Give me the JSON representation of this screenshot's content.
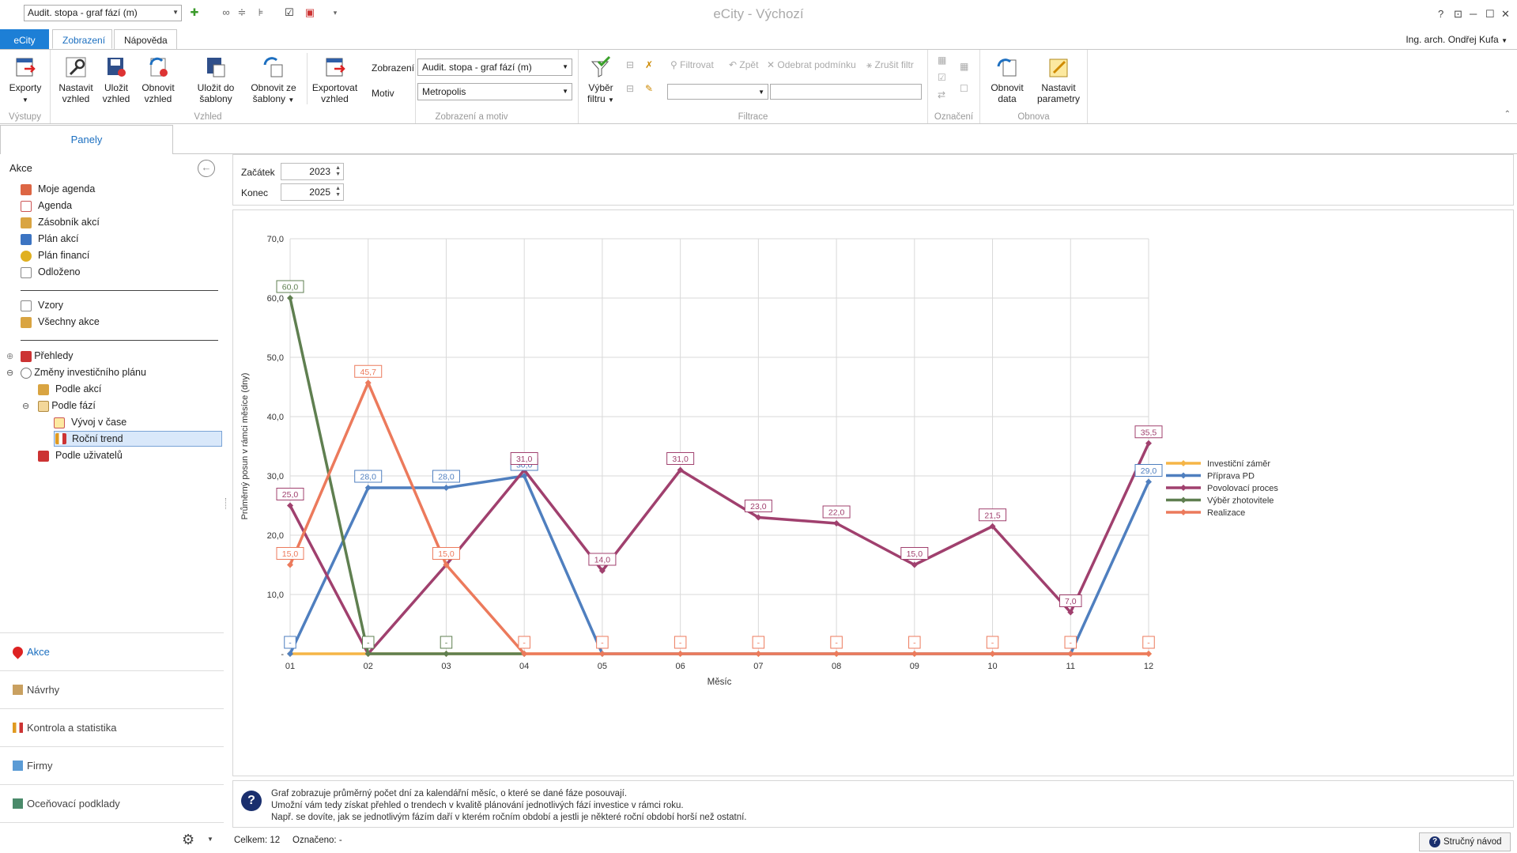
{
  "quick_access": {
    "view_combo": "Audit. stopa - graf fází (m)"
  },
  "app_title": "eCity - Výchozí",
  "window_buttons": [
    "?",
    "⊡",
    "─",
    "☐",
    "✕"
  ],
  "ribbon_tabs": [
    {
      "label": "eCity"
    },
    {
      "label": "Zobrazení"
    },
    {
      "label": "Nápověda"
    }
  ],
  "user": "Ing. arch. Ondřej Kufa",
  "ribbon": {
    "vystupy": {
      "label": "Výstupy",
      "exports": "Exporty"
    },
    "vzhled": {
      "label": "Vzhled",
      "nastavit": "Nastavit vzhled",
      "ulozit": "Uložit vzhled",
      "obnovit": "Obnovit vzhled",
      "ulozit_sablony": "Uložit do šablony",
      "obnovit_sablony": "Obnovit ze šablony",
      "exportovat": "Exportovat vzhled"
    },
    "zobrazeni_motiv": {
      "label": "Zobrazení a motiv",
      "zobrazeni_label": "Zobrazení",
      "zobrazeni_value": "Audit. stopa - graf fází (m)",
      "motiv_label": "Motiv",
      "motiv_value": "Metropolis"
    },
    "filtrace": {
      "label": "Filtrace",
      "vyber_filtru": "Výběr filtru",
      "filtrovat": "Filtrovat",
      "zpet": "Zpět",
      "odebrat": "Odebrat podmínku",
      "zrusit": "Zrušit filtr"
    },
    "oznaceni": {
      "label": "Označení"
    },
    "obnova": {
      "label": "Obnova",
      "obnovit_data": "Obnovit data",
      "nastavit_parametry": "Nastavit parametry"
    }
  },
  "left_panel": {
    "tab": "Panely",
    "section": "Akce",
    "items": [
      {
        "label": "Moje agenda"
      },
      {
        "label": "Agenda"
      },
      {
        "label": "Zásobník akcí"
      },
      {
        "label": "Plán akcí"
      },
      {
        "label": "Plán financí"
      },
      {
        "label": "Odloženo"
      },
      {
        "label": "Vzory"
      },
      {
        "label": "Všechny akce"
      },
      {
        "label": "Přehledy"
      },
      {
        "label": "Změny investičního plánu"
      },
      {
        "label": "Podle akcí"
      },
      {
        "label": "Podle fází"
      },
      {
        "label": "Vývoj v čase"
      },
      {
        "label": "Roční trend"
      },
      {
        "label": "Podle uživatelů"
      }
    ],
    "nav": [
      {
        "label": "Akce"
      },
      {
        "label": "Návrhy"
      },
      {
        "label": "Kontrola a statistika"
      },
      {
        "label": "Firmy"
      },
      {
        "label": "Oceňovací podklady"
      }
    ]
  },
  "filters": {
    "start_label": "Začátek",
    "start_value": "2023",
    "end_label": "Konec",
    "end_value": "2025"
  },
  "chart_data": {
    "type": "line",
    "xlabel": "Měsíc",
    "ylabel": "Průměrný posun v rámci měsíce (dny)",
    "categories": [
      "01",
      "02",
      "03",
      "04",
      "05",
      "06",
      "07",
      "08",
      "09",
      "10",
      "11",
      "12"
    ],
    "ylim": [
      0,
      70
    ],
    "yticks": [
      "-",
      "10,0",
      "20,0",
      "30,0",
      "40,0",
      "50,0",
      "60,0",
      "70,0"
    ],
    "grid": true,
    "legend_position": "right",
    "series": [
      {
        "name": "Investiční záměr",
        "color": "#f5b547",
        "values": [
          0,
          0,
          0,
          0,
          0,
          0,
          0,
          0,
          0,
          0,
          0,
          0
        ],
        "labels": []
      },
      {
        "name": "Příprava PD",
        "color": "#4f7fbf",
        "values": [
          0,
          28,
          28,
          30,
          0,
          null,
          null,
          null,
          null,
          null,
          0,
          29
        ],
        "labels": [
          "-",
          "28,0",
          "28,0",
          "30,0",
          "",
          "",
          "",
          "",
          "",
          "",
          "",
          "29,0"
        ]
      },
      {
        "name": "Povolovací proces",
        "color": "#a0406e",
        "values": [
          25,
          0,
          15,
          31,
          14,
          31,
          23,
          22,
          15,
          21.5,
          7,
          35.5
        ],
        "labels": [
          "25,0",
          "",
          "",
          "31,0",
          "14,0",
          "31,0",
          "23,0",
          "22,0",
          "15,0",
          "21,5",
          "7,0",
          "35,5"
        ]
      },
      {
        "name": "Výběr zhotovitele",
        "color": "#5f7f50",
        "values": [
          60,
          0,
          0,
          0,
          null,
          null,
          null,
          null,
          null,
          null,
          null,
          null
        ],
        "labels": [
          "60,0",
          "-",
          "-",
          "",
          "",
          "",
          "",
          "",
          "",
          "",
          "",
          ""
        ]
      },
      {
        "name": "Realizace",
        "color": "#ec7a5c",
        "values": [
          15,
          45.7,
          15,
          0,
          0,
          0,
          0,
          0,
          0,
          0,
          0,
          0
        ],
        "labels": [
          "15,0",
          "45,7",
          "15,0",
          "-",
          "-",
          "-",
          "-",
          "-",
          "-",
          "-",
          "-",
          "-"
        ]
      }
    ]
  },
  "info": {
    "line1": "Graf zobrazuje průměrný počet dní za kalendářní měsíc, o které se dané fáze posouvají.",
    "line2": "Umožní vám tedy získat přehled o trendech v kvalitě plánování jednotlivých fází investice v rámci roku.",
    "line3": "Např. se dovíte, jak se jednotlivým fázím daří v kterém ročním období a jestli je některé roční období horší než ostatní."
  },
  "status": {
    "celkem": "Celkem: 12",
    "oznaceno": "Označeno: -",
    "help": "Stručný návod"
  }
}
